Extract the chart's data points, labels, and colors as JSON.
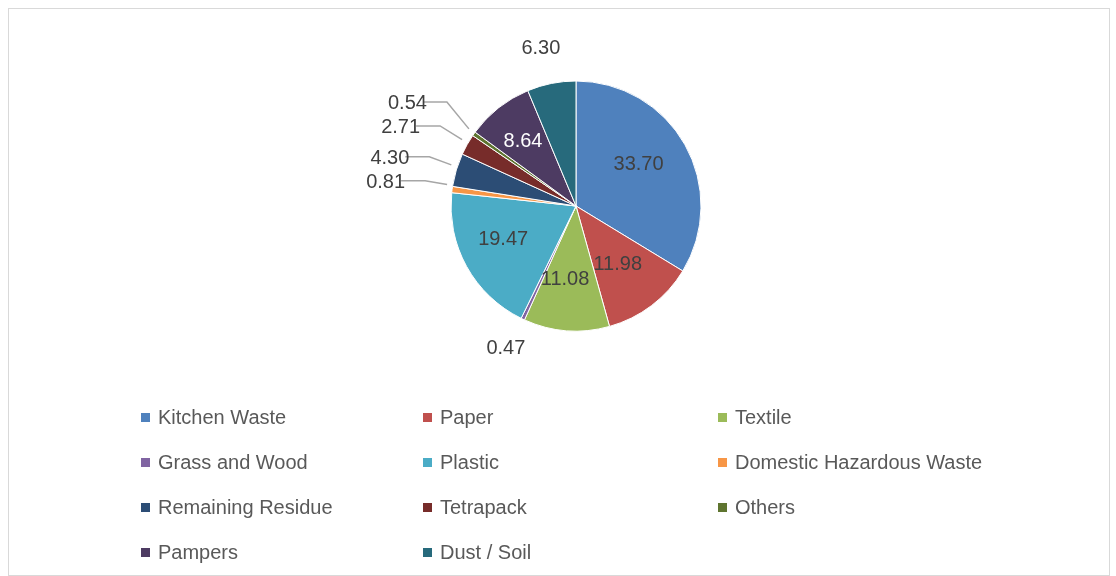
{
  "chart_data": {
    "type": "pie",
    "categories": [
      "Kitchen Waste",
      "Paper",
      "Textile",
      "Grass and Wood",
      "Plastic",
      "Domestic Hazardous Waste",
      "Remaining Residue",
      "Tetrapack",
      "Others",
      "Pampers",
      "Dust / Soil"
    ],
    "values": [
      33.7,
      11.98,
      11.08,
      0.47,
      19.47,
      0.81,
      4.3,
      2.71,
      0.54,
      8.64,
      6.3
    ],
    "value_labels": [
      "33.70",
      "11.98",
      "11.08",
      "0.47",
      "19.47",
      "0.81",
      "4.30",
      "2.71",
      "0.54",
      "8.64",
      "6.30"
    ],
    "colors": [
      "#4f81bd",
      "#c0504d",
      "#9bbb59",
      "#8064a2",
      "#4bacc6",
      "#f79646",
      "#2c4d75",
      "#772c2a",
      "#5f7530",
      "#4d3b62",
      "#276a7c"
    ],
    "legend": "bottom"
  }
}
